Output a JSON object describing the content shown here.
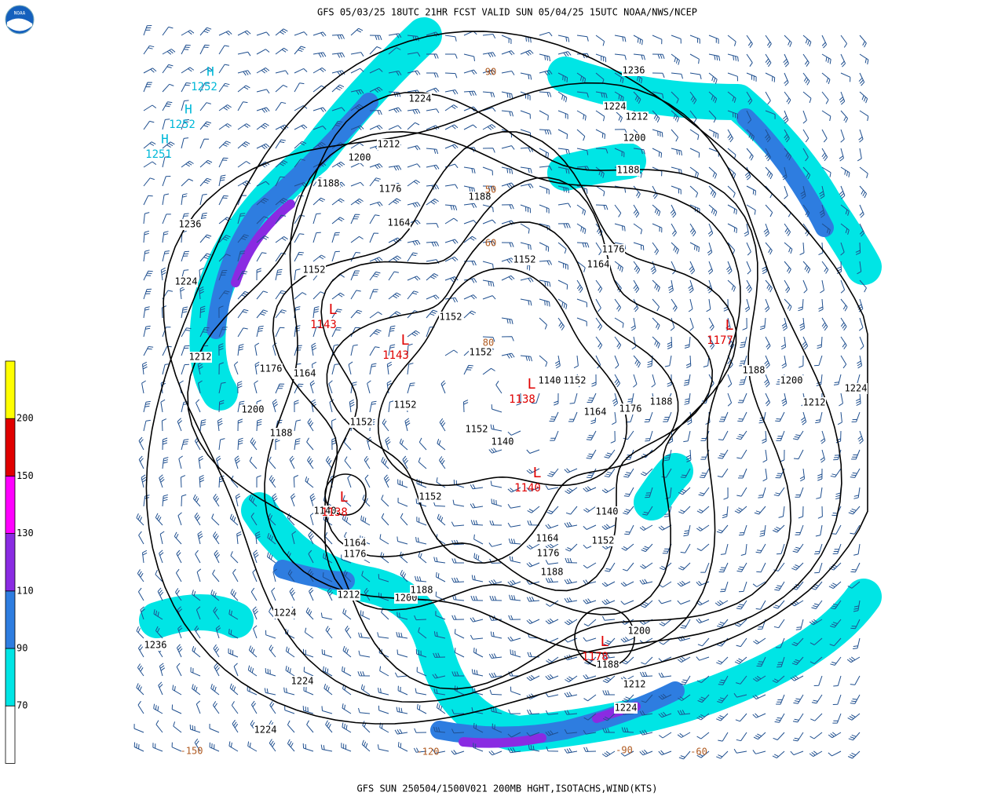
{
  "title": "GFS 05/03/25 18UTC 21HR FCST VALID SUN 05/04/25 15UTC NOAA/NWS/NCEP",
  "footer": "GFS SUN 250504/1500V021 200MB HGHT,ISOTACHS,WIND(KTS)",
  "logo": "NOAA",
  "colorbar": {
    "levels": [
      70,
      90,
      110,
      130,
      150,
      200
    ],
    "colors": [
      "#ffffff",
      "#00e5e5",
      "#2e7de0",
      "#8a2be2",
      "#ff00ff",
      "#e00000",
      "#ffff00"
    ]
  },
  "height_labels": [
    "1236",
    "1224",
    "1212",
    "1200",
    "1188",
    "1176",
    "1164",
    "1152",
    "1152",
    "1236",
    "1224",
    "1212",
    "1200",
    "1188",
    "1176",
    "1164",
    "1152",
    "1152",
    "1152",
    "1152",
    "1152",
    "1140",
    "1140",
    "1152",
    "1164",
    "1176",
    "1188",
    "1188",
    "1200",
    "1212",
    "1224",
    "1164",
    "1176",
    "1188",
    "1200",
    "1212",
    "1224",
    "1140",
    "1164",
    "1176",
    "1212",
    "1200",
    "1188",
    "1224",
    "1236",
    "1224",
    "1224",
    "1164",
    "1176",
    "1188",
    "1152",
    "1140",
    "1152",
    "1200",
    "1188",
    "1212",
    "1224",
    "1188"
  ],
  "lows": [
    {
      "symbol": "L",
      "value": "1143"
    },
    {
      "symbol": "L",
      "value": "1143"
    },
    {
      "symbol": "L",
      "value": "1138"
    },
    {
      "symbol": "L",
      "value": "1140"
    },
    {
      "symbol": "L",
      "value": "1138"
    },
    {
      "symbol": "L",
      "value": "1177"
    },
    {
      "symbol": "L",
      "value": "1178"
    }
  ],
  "highs": [
    {
      "symbol": "H",
      "value": "1252"
    },
    {
      "symbol": "H",
      "value": "1252"
    },
    {
      "symbol": "H",
      "value": "1251"
    }
  ],
  "grid_labels": [
    "90",
    "50",
    "60",
    "80",
    "-150",
    "-120",
    "-90",
    "-60"
  ]
}
